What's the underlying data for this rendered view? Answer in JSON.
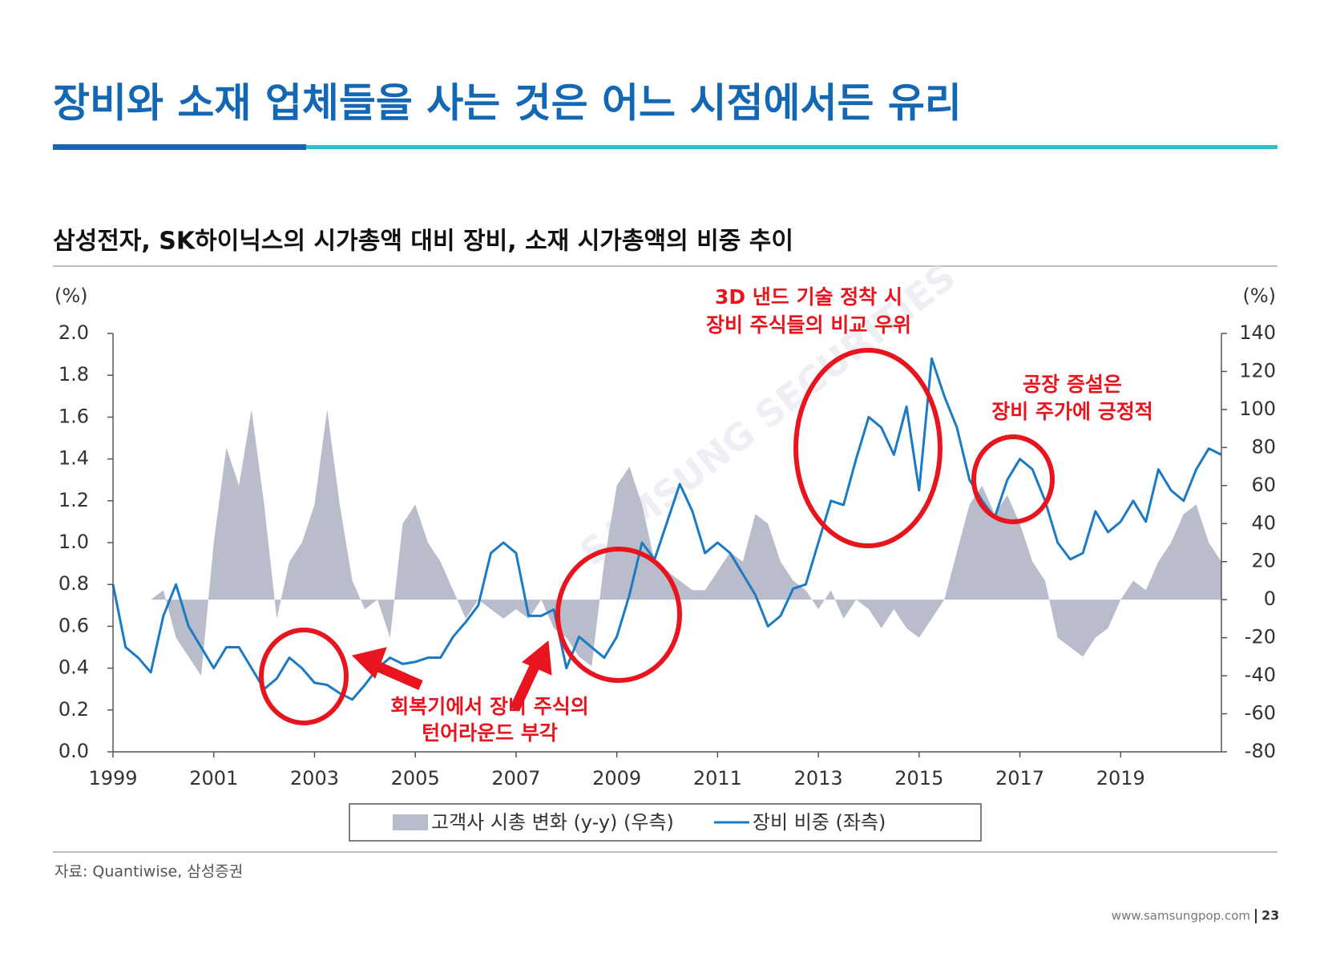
{
  "chart_data": {
    "type": "line",
    "title": "장비와 소재 업체들을 사는 것은 어느 시점에서든 유리",
    "subtitle": "삼성전자, SK하이닉스의 시가총액 대비 장비, 소재 시가총액의 비중 추이",
    "y_label": "(%)",
    "y2_label": "(%)",
    "source": "자료: Quantiwise, 삼성증권",
    "footer": "www.samsungpop.com",
    "page_number": "23",
    "watermark": "SAMSUNG SECURITIES",
    "annotations": [
      "3D 낸드 기술 정착 시",
      "장비 주식들의 비교 우위",
      "공장 증설은",
      "장비 주가에 긍정적",
      "회복기에서 장비 주식의",
      "턴어라운드 부각"
    ],
    "x": [
      1999,
      1999.25,
      1999.5,
      1999.75,
      2000,
      2000.25,
      2000.5,
      2000.75,
      2001,
      2001.25,
      2001.5,
      2001.75,
      2002,
      2002.25,
      2002.5,
      2002.75,
      2003,
      2003.25,
      2003.5,
      2003.75,
      2004,
      2004.25,
      2004.5,
      2004.75,
      2005,
      2005.25,
      2005.5,
      2005.75,
      2006,
      2006.25,
      2006.5,
      2006.75,
      2007,
      2007.25,
      2007.5,
      2007.75,
      2008,
      2008.25,
      2008.5,
      2008.75,
      2009,
      2009.25,
      2009.5,
      2009.75,
      2010,
      2010.25,
      2010.5,
      2010.75,
      2011,
      2011.25,
      2011.5,
      2011.75,
      2012,
      2012.25,
      2012.5,
      2012.75,
      2013,
      2013.25,
      2013.5,
      2013.75,
      2014,
      2014.25,
      2014.5,
      2014.75,
      2015,
      2015.25,
      2015.5,
      2015.75,
      2016,
      2016.25,
      2016.5,
      2016.75,
      2017,
      2017.25,
      2017.5,
      2017.75,
      2018,
      2018.25,
      2018.5,
      2018.75,
      2019,
      2019.25,
      2019.5,
      2019.75,
      2020,
      2020.25,
      2020.5,
      2020.75,
      2021
    ],
    "series": [
      {
        "name": "고객사 시총 변화 (y-y) (우측)",
        "color": "#b9bccb",
        "axis": "y2",
        "kind": "area",
        "values": [
          0,
          0,
          0,
          0,
          5,
          -20,
          -30,
          -40,
          30,
          80,
          60,
          100,
          50,
          -10,
          20,
          30,
          50,
          100,
          50,
          10,
          -5,
          0,
          -20,
          40,
          50,
          30,
          20,
          5,
          -10,
          0,
          -5,
          -10,
          -5,
          -10,
          0,
          -15,
          -20,
          -30,
          -35,
          20,
          60,
          70,
          50,
          20,
          15,
          10,
          5,
          5,
          15,
          25,
          20,
          45,
          40,
          20,
          10,
          5,
          -5,
          5,
          -10,
          0,
          -5,
          -15,
          -5,
          -15,
          -20,
          -10,
          0,
          25,
          50,
          60,
          45,
          55,
          40,
          20,
          10,
          -20,
          -25,
          -30,
          -20,
          -15,
          0,
          10,
          5,
          20,
          30,
          45,
          50,
          30,
          20
        ]
      },
      {
        "name": "장비 비중 (좌측)",
        "color": "#1a7ac4",
        "kind": "line",
        "values": [
          0.8,
          0.5,
          0.45,
          0.38,
          0.65,
          0.8,
          0.6,
          0.5,
          0.4,
          0.5,
          0.5,
          0.4,
          0.3,
          0.35,
          0.45,
          0.4,
          0.33,
          0.32,
          0.28,
          0.25,
          0.32,
          0.4,
          0.45,
          0.42,
          0.43,
          0.45,
          0.45,
          0.55,
          0.62,
          0.7,
          0.95,
          1.0,
          0.95,
          0.65,
          0.65,
          0.68,
          0.4,
          0.55,
          0.5,
          0.45,
          0.55,
          0.75,
          1.0,
          0.92,
          1.1,
          1.28,
          1.15,
          0.95,
          1.0,
          0.95,
          0.85,
          0.75,
          0.6,
          0.65,
          0.78,
          0.8,
          1.0,
          1.2,
          1.18,
          1.4,
          1.6,
          1.55,
          1.42,
          1.65,
          1.25,
          1.88,
          1.7,
          1.55,
          1.3,
          1.2,
          1.12,
          1.3,
          1.4,
          1.35,
          1.2,
          1.0,
          0.92,
          0.95,
          1.15,
          1.05,
          1.1,
          1.2,
          1.1,
          1.35,
          1.25,
          1.2,
          1.35,
          1.45,
          1.42
        ]
      }
    ],
    "xlim": [
      1999,
      2021
    ],
    "xticks": [
      1999,
      2001,
      2003,
      2005,
      2007,
      2009,
      2011,
      2013,
      2015,
      2017,
      2019
    ],
    "ylim": [
      0,
      2
    ],
    "yticks": [
      {
        "value": 0,
        "label": "0.0"
      },
      0.2,
      0.4,
      0.6,
      0.8,
      {
        "value": 1,
        "label": "1.0"
      },
      1.2,
      1.4,
      1.6,
      1.8,
      {
        "value": 2,
        "label": "2.0"
      }
    ],
    "y2lim": [
      -80,
      140
    ],
    "y2ticks": [
      -80,
      -60,
      -40,
      -20,
      0,
      20,
      40,
      60,
      80,
      100,
      120,
      140
    ]
  }
}
